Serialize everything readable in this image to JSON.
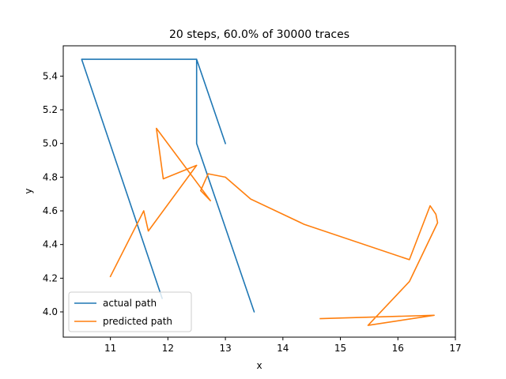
{
  "chart_data": {
    "type": "line",
    "title": "20 steps, 60.0% of 30000 traces",
    "xlabel": "x",
    "ylabel": "y",
    "xlim": [
      10.18,
      17.0
    ],
    "ylim": [
      3.85,
      5.58
    ],
    "xticks": [
      11,
      12,
      13,
      14,
      15,
      16,
      17
    ],
    "yticks": [
      4.0,
      4.2,
      4.4,
      4.6,
      4.8,
      5.0,
      5.2,
      5.4
    ],
    "ytick_labels": [
      "4.0",
      "4.2",
      "4.4",
      "4.6",
      "4.8",
      "5.0",
      "5.2",
      "5.4"
    ],
    "grid": false,
    "legend_position": "lower left",
    "series": [
      {
        "name": "actual path",
        "color": "#1f77b4",
        "x": [
          11.9,
          10.5,
          12.5,
          12.5,
          13.5,
          12.5,
          12.5,
          13.0,
          12.5,
          13.0
        ],
        "y": [
          4.08,
          5.5,
          5.5,
          5.0,
          4.0,
          5.0,
          5.5,
          5.0,
          5.5,
          5.0
        ]
      },
      {
        "name": "predicted path",
        "color": "#ff7f0e",
        "x": [
          11.0,
          11.58,
          11.66,
          12.5,
          11.92,
          11.8,
          12.74,
          12.57,
          12.7,
          13.0,
          13.44,
          14.37,
          16.2,
          16.56,
          16.66,
          16.69,
          16.2,
          15.48,
          16.63,
          14.65
        ],
        "y": [
          4.21,
          4.6,
          4.48,
          4.87,
          4.79,
          5.09,
          4.66,
          4.72,
          4.82,
          4.8,
          4.67,
          4.52,
          4.31,
          4.63,
          4.58,
          4.53,
          4.18,
          3.92,
          3.98,
          3.96
        ]
      }
    ]
  }
}
